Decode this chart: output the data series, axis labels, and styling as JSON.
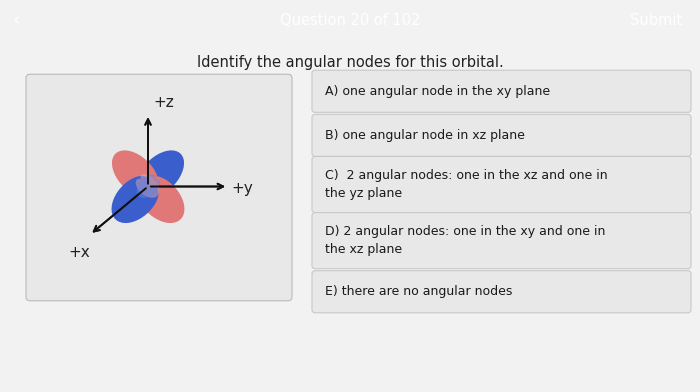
{
  "title_bar_color": "#e53935",
  "title_bar_text": "Question 20 of 102",
  "submit_text": "Submit",
  "back_arrow": "‹",
  "question_text": "Identify the angular nodes for this orbital.",
  "bg_color": "#f2f2f2",
  "option_bg": "#e8e8e8",
  "option_border": "#c8c8c8",
  "options": [
    "A) one angular node in the xy plane",
    "B) one angular node in xz plane",
    "C)  2 angular nodes: one in the xz and one in\nthe yz plane",
    "D) 2 angular nodes: one in the xy and one in\nthe xz plane",
    "E) there are no angular nodes"
  ],
  "lobe_pink": "#e07878",
  "lobe_pink_light": "#eeaaaa",
  "lobe_blue": "#3a5fcc",
  "lobe_blue_light": "#6688dd",
  "box_bg": "#e8e8e8",
  "box_border": "#cccccc"
}
